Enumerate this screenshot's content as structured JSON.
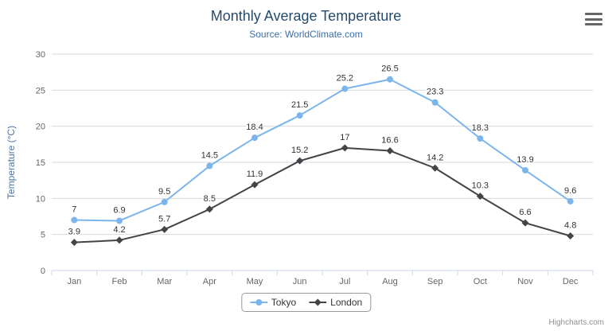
{
  "chart_data": {
    "type": "line",
    "title": "Monthly Average Temperature",
    "subtitle": "Source: WorldClimate.com",
    "categories": [
      "Jan",
      "Feb",
      "Mar",
      "Apr",
      "May",
      "Jun",
      "Jul",
      "Aug",
      "Sep",
      "Oct",
      "Nov",
      "Dec"
    ],
    "series": [
      {
        "name": "Tokyo",
        "color": "#7cb5ec",
        "marker": "circle",
        "values": [
          7,
          6.9,
          9.5,
          14.5,
          18.4,
          21.5,
          25.2,
          26.5,
          23.3,
          18.3,
          13.9,
          9.6
        ]
      },
      {
        "name": "London",
        "color": "#434348",
        "marker": "diamond",
        "values": [
          3.9,
          4.2,
          5.7,
          8.5,
          11.9,
          15.2,
          17,
          16.6,
          14.2,
          10.3,
          6.6,
          4.8
        ]
      }
    ],
    "xlabel": "",
    "ylabel": "Temperature (°C)",
    "ylim": [
      0,
      30
    ],
    "ytick_interval": 5,
    "yticks": [
      0,
      5,
      10,
      15,
      20,
      25,
      30
    ],
    "grid": true,
    "data_labels": true,
    "legend_position": "bottom"
  },
  "colors": {
    "title": "#274b6d",
    "subtitle": "#3d6fa8",
    "axis_title": "#4d759e",
    "axis_labels": "#666666",
    "gridline": "#d8d8d8",
    "axis_line": "#ccd6eb",
    "data_label": "#333333"
  },
  "menu": {
    "icon": "hamburger-menu-icon"
  },
  "credits": {
    "label": "Highcharts.com"
  }
}
